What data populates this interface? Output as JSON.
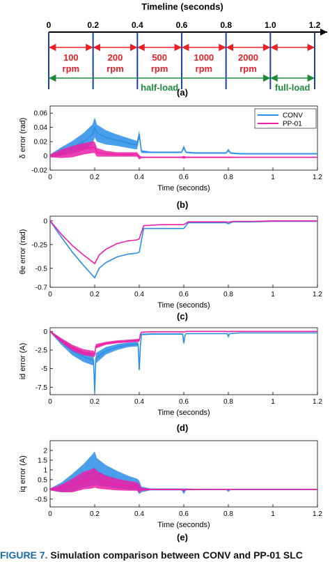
{
  "timeline": {
    "title": "Timeline (seconds)",
    "ticks": [
      "0",
      "0.2",
      "0.4",
      "0.6",
      "0.8",
      "1.0",
      "1.2"
    ],
    "tick_values": [
      0,
      0.2,
      0.4,
      0.6,
      0.8,
      1.0,
      1.2
    ],
    "speeds": [
      {
        "value": "100",
        "unit": "rpm",
        "start": 0,
        "end": 0.2
      },
      {
        "value": "200",
        "unit": "rpm",
        "start": 0.2,
        "end": 0.4
      },
      {
        "value": "500",
        "unit": "rpm",
        "start": 0.4,
        "end": 0.6
      },
      {
        "value": "1000",
        "unit": "rpm",
        "start": 0.6,
        "end": 0.8
      },
      {
        "value": "2000",
        "unit": "rpm",
        "start": 0.8,
        "end": 1.0
      }
    ],
    "loads": [
      {
        "label": "half-load",
        "start": 0,
        "end": 1.0
      },
      {
        "label": "full-load",
        "start": 1.0,
        "end": 1.2
      }
    ],
    "panel_label": "(a)",
    "colors": {
      "speed": "#e8202a",
      "load": "#1f8a3a",
      "marker": "#1a3fb0",
      "axis": "#000000"
    }
  },
  "colors": {
    "CONV": "#2b8ee6",
    "PP-01": "#ec1fa6"
  },
  "legend": [
    "CONV",
    "PP-01"
  ],
  "caption": {
    "lead": "FIGURE 7.",
    "rest": "Simulation comparison between CONV and PP-01 SLC"
  },
  "chart_data": [
    {
      "type": "line",
      "panel_label": "(b)",
      "xlabel": "Time (seconds)",
      "ylabel": "δ error (rad)",
      "xlim": [
        0,
        1.2
      ],
      "ylim": [
        -0.02,
        0.07
      ],
      "xticks": [
        0,
        0.2,
        0.4,
        0.6,
        0.8,
        1,
        1.2
      ],
      "xtick_labels": [
        "0",
        "0.2",
        "0.4",
        "0.6",
        "0.8",
        "1",
        "1.2"
      ],
      "yticks": [
        -0.02,
        0,
        0.02,
        0.04,
        0.06
      ],
      "ytick_labels": [
        "-0.02",
        "0",
        "0.02",
        "0.04",
        "0.06"
      ],
      "grid": false,
      "legend": "top-right",
      "series": [
        {
          "name": "CONV",
          "x": [
            0,
            0.05,
            0.1,
            0.15,
            0.19,
            0.2,
            0.21,
            0.25,
            0.3,
            0.35,
            0.39,
            0.4,
            0.41,
            0.45,
            0.5,
            0.55,
            0.59,
            0.6,
            0.61,
            0.65,
            0.7,
            0.75,
            0.79,
            0.8,
            0.81,
            0.85,
            0.9,
            0.95,
            1.0,
            1.05,
            1.1,
            1.15,
            1.2
          ],
          "y": [
            0,
            0.006,
            0.012,
            0.02,
            0.03,
            0.04,
            0.032,
            0.026,
            0.022,
            0.018,
            0.015,
            0.03,
            0.006,
            0.005,
            0.005,
            0.005,
            0.005,
            0.012,
            0.005,
            0.004,
            0.004,
            0.004,
            0.004,
            0.008,
            0.004,
            0.003,
            0.003,
            0.003,
            0.003,
            0.003,
            0.003,
            0.003,
            0.003
          ],
          "band": [
            0.002,
            0.006,
            0.009,
            0.012,
            0.014,
            0.014,
            0.012,
            0.01,
            0.008,
            0.007,
            0.006,
            0.006,
            0.002,
            0.001,
            0.001,
            0.001,
            0.001,
            0.003,
            0.001,
            0.001,
            0.001,
            0.001,
            0.001,
            0.002,
            0.001,
            0.001,
            0.001,
            0.001,
            0.001,
            0.001,
            0.001,
            0.001,
            0.001
          ]
        },
        {
          "name": "PP-01",
          "x": [
            0,
            0.05,
            0.1,
            0.15,
            0.19,
            0.2,
            0.21,
            0.25,
            0.3,
            0.35,
            0.39,
            0.4,
            0.41,
            0.45,
            0.5,
            0.55,
            0.59,
            0.6,
            0.61,
            0.65,
            0.7,
            0.75,
            0.79,
            0.8,
            0.81,
            0.85,
            0.9,
            0.95,
            1.0,
            1.05,
            1.1,
            1.15,
            1.2
          ],
          "y": [
            0,
            0.003,
            0.006,
            0.01,
            0.012,
            0.012,
            0.005,
            0.003,
            0.002,
            0.002,
            0.002,
            -0.002,
            -0.002,
            -0.002,
            -0.002,
            -0.002,
            -0.002,
            -0.002,
            -0.002,
            -0.002,
            -0.002,
            -0.002,
            -0.002,
            -0.002,
            -0.002,
            -0.002,
            -0.002,
            -0.002,
            -0.002,
            -0.002,
            -0.002,
            -0.002,
            -0.002
          ],
          "band": [
            0.002,
            0.006,
            0.008,
            0.008,
            0.008,
            0.008,
            0.006,
            0.004,
            0.003,
            0.003,
            0.003,
            0.003,
            0.001,
            0.001,
            0.001,
            0.001,
            0.001,
            0.002,
            0.001,
            0.001,
            0.001,
            0.001,
            0.001,
            0.001,
            0.001,
            0.0005,
            0.0005,
            0.0005,
            0.0005,
            0.0005,
            0.0005,
            0.0005,
            0.0005
          ]
        }
      ]
    },
    {
      "type": "line",
      "panel_label": "(c)",
      "xlabel": "Time (seconds)",
      "ylabel": "θe error (rad)",
      "xlim": [
        0,
        1.2
      ],
      "ylim": [
        -0.7,
        0.05
      ],
      "xticks": [
        0,
        0.2,
        0.4,
        0.6,
        0.8,
        1,
        1.2
      ],
      "xtick_labels": [
        "0",
        "0.2",
        "0.4",
        "0.6",
        "0.8",
        "1",
        "1.2"
      ],
      "yticks": [
        -0.7,
        -0.5,
        -0.25,
        0
      ],
      "ytick_labels": [
        "-0.7",
        "-0.5",
        "-0.25",
        "0"
      ],
      "grid": false,
      "series": [
        {
          "name": "CONV",
          "x": [
            0,
            0.05,
            0.1,
            0.15,
            0.2,
            0.22,
            0.25,
            0.3,
            0.35,
            0.39,
            0.4,
            0.42,
            0.5,
            0.59,
            0.6,
            0.62,
            0.7,
            0.79,
            0.8,
            0.82,
            0.9,
            1.0,
            1.1,
            1.2
          ],
          "y": [
            0,
            -0.17,
            -0.33,
            -0.47,
            -0.6,
            -0.5,
            -0.44,
            -0.38,
            -0.35,
            -0.34,
            -0.33,
            -0.08,
            -0.08,
            -0.08,
            -0.08,
            -0.02,
            -0.02,
            -0.02,
            -0.03,
            -0.01,
            -0.01,
            -0.005,
            -0.005,
            -0.005
          ]
        },
        {
          "name": "PP-01",
          "x": [
            0,
            0.05,
            0.1,
            0.15,
            0.2,
            0.22,
            0.25,
            0.3,
            0.35,
            0.39,
            0.4,
            0.42,
            0.5,
            0.59,
            0.6,
            0.62,
            0.7,
            0.79,
            0.8,
            0.82,
            0.9,
            1.0,
            1.1,
            1.2
          ],
          "y": [
            0,
            -0.14,
            -0.26,
            -0.36,
            -0.45,
            -0.36,
            -0.3,
            -0.24,
            -0.21,
            -0.2,
            -0.19,
            -0.05,
            -0.04,
            -0.04,
            -0.04,
            -0.01,
            -0.01,
            -0.01,
            -0.015,
            -0.005,
            -0.005,
            0,
            0,
            0
          ]
        }
      ]
    },
    {
      "type": "line",
      "panel_label": "(d)",
      "xlabel": "Time (seconds)",
      "ylabel": "id error (A)",
      "xlim": [
        0,
        1.2
      ],
      "ylim": [
        -8.5,
        0.5
      ],
      "xticks": [
        0,
        0.2,
        0.4,
        0.6,
        0.8,
        1,
        1.2
      ],
      "xtick_labels": [
        "0",
        "0.2",
        "0.4",
        "0.6",
        "0.8",
        "1",
        "1.2"
      ],
      "yticks": [
        -7.5,
        -5,
        -2.5,
        0
      ],
      "ytick_labels": [
        "-7.5",
        "-5",
        "-2.5",
        "0"
      ],
      "grid": false,
      "series": [
        {
          "name": "CONV",
          "x": [
            0,
            0.05,
            0.1,
            0.15,
            0.195,
            0.2,
            0.205,
            0.25,
            0.3,
            0.35,
            0.395,
            0.4,
            0.405,
            0.41,
            0.45,
            0.5,
            0.55,
            0.595,
            0.6,
            0.605,
            0.61,
            0.65,
            0.7,
            0.75,
            0.795,
            0.8,
            0.805,
            0.85,
            0.9,
            0.95,
            1.0,
            1.05,
            1.1,
            1.15,
            1.2
          ],
          "y": [
            0,
            -1.4,
            -2.6,
            -3.4,
            -3.9,
            -8.2,
            -3.6,
            -2.6,
            -2.1,
            -1.8,
            -1.7,
            -5.2,
            -2.0,
            -0.4,
            -0.35,
            -0.35,
            -0.35,
            -0.35,
            -1.6,
            -0.6,
            -0.3,
            -0.3,
            -0.3,
            -0.3,
            -0.3,
            -0.7,
            -0.3,
            -0.2,
            -0.2,
            -0.2,
            -0.2,
            -0.2,
            -0.2,
            -0.2,
            -0.2
          ],
          "band": [
            0.1,
            0.4,
            0.6,
            0.7,
            0.7,
            0.5,
            0.7,
            0.5,
            0.4,
            0.3,
            0.3,
            0.3,
            0.2,
            0.1,
            0.1,
            0.1,
            0.1,
            0.1,
            0.2,
            0.1,
            0.05,
            0.05,
            0.05,
            0.05,
            0.05,
            0.1,
            0.05,
            0.05,
            0.05,
            0.05,
            0.05,
            0.05,
            0.05,
            0.05,
            0.05
          ]
        },
        {
          "name": "PP-01",
          "x": [
            0,
            0.05,
            0.1,
            0.15,
            0.195,
            0.2,
            0.205,
            0.25,
            0.3,
            0.35,
            0.395,
            0.4,
            0.405,
            0.41,
            0.45,
            0.5,
            0.55,
            0.595,
            0.6,
            0.605,
            0.61,
            0.65,
            0.7,
            0.75,
            0.795,
            0.8,
            0.805,
            0.85,
            0.9,
            0.95,
            1.0,
            1.05,
            1.1,
            1.15,
            1.2
          ],
          "y": [
            0,
            -1.2,
            -2.2,
            -2.8,
            -3.0,
            -3.1,
            -2.0,
            -1.6,
            -1.4,
            -1.3,
            -1.2,
            -1.2,
            -0.4,
            -0.1,
            -0.05,
            -0.05,
            -0.05,
            -0.05,
            -0.1,
            -0.05,
            0,
            0,
            0,
            0,
            0,
            -0.05,
            0,
            0,
            0,
            0,
            0,
            0,
            0,
            0,
            0
          ],
          "band": [
            0.1,
            0.3,
            0.4,
            0.4,
            0.4,
            0.3,
            0.3,
            0.2,
            0.2,
            0.2,
            0.2,
            0.2,
            0.1,
            0.05,
            0.05,
            0.05,
            0.05,
            0.05,
            0.05,
            0.05,
            0.05,
            0.05,
            0.05,
            0.05,
            0.05,
            0.05,
            0.05,
            0.05,
            0.05,
            0.05,
            0.05,
            0.05,
            0.05,
            0.05,
            0.05
          ]
        }
      ]
    },
    {
      "type": "line",
      "panel_label": "(e)",
      "xlabel": "Time (seconds)",
      "ylabel": "iq error (A)",
      "xlim": [
        0,
        1.2
      ],
      "ylim": [
        -0.9,
        2.5
      ],
      "xticks": [
        0,
        0.2,
        0.4,
        0.6,
        0.8,
        1,
        1.2
      ],
      "xtick_labels": [
        "0",
        "0.2",
        "0.4",
        "0.6",
        "0.8",
        "1",
        "1.2"
      ],
      "yticks": [
        -0.5,
        0,
        0.5,
        1,
        1.5,
        2
      ],
      "ytick_labels": [
        "-0.5",
        "0",
        "0.5",
        "1",
        "1.5",
        "2"
      ],
      "grid": false,
      "series": [
        {
          "name": "CONV",
          "x": [
            0,
            0.05,
            0.1,
            0.15,
            0.19,
            0.2,
            0.21,
            0.25,
            0.3,
            0.35,
            0.39,
            0.4,
            0.41,
            0.45,
            0.5,
            0.55,
            0.59,
            0.6,
            0.61,
            0.65,
            0.7,
            0.75,
            0.79,
            0.8,
            0.81,
            0.85,
            0.9,
            0.95,
            1.0,
            1.05,
            1.1,
            1.15,
            1.2
          ],
          "y": [
            0,
            0.1,
            0.35,
            0.7,
            1.0,
            1.1,
            0.9,
            0.7,
            0.5,
            0.35,
            0.25,
            0.1,
            0,
            0,
            0,
            0,
            0,
            -0.1,
            0,
            0,
            0,
            0,
            0,
            -0.05,
            0,
            0,
            0,
            0,
            0,
            0,
            0,
            0,
            0
          ],
          "band": [
            0.05,
            0.25,
            0.45,
            0.6,
            0.8,
            0.85,
            0.7,
            0.55,
            0.45,
            0.35,
            0.3,
            0.35,
            0.15,
            0.05,
            0.05,
            0.05,
            0.05,
            0.15,
            0.05,
            0.03,
            0.03,
            0.03,
            0.03,
            0.08,
            0.03,
            0.03,
            0.03,
            0.03,
            0.03,
            0.03,
            0.03,
            0.03,
            0.03
          ]
        },
        {
          "name": "PP-01",
          "x": [
            0,
            0.05,
            0.1,
            0.15,
            0.19,
            0.2,
            0.21,
            0.25,
            0.3,
            0.35,
            0.39,
            0.4,
            0.41,
            0.45,
            0.5,
            0.55,
            0.59,
            0.6,
            0.61,
            0.65,
            0.7,
            0.75,
            0.79,
            0.8,
            0.81,
            0.85,
            0.9,
            0.95,
            1.0,
            1.05,
            1.1,
            1.15,
            1.2
          ],
          "y": [
            0,
            0.05,
            0.2,
            0.45,
            0.55,
            0.6,
            0.5,
            0.35,
            0.25,
            0.18,
            0.15,
            0.05,
            0,
            0,
            0,
            0,
            0,
            -0.05,
            0,
            0,
            0,
            0,
            0,
            0,
            0,
            0,
            0,
            0,
            0,
            0,
            0,
            0,
            0
          ],
          "band": [
            0.05,
            0.2,
            0.35,
            0.45,
            0.5,
            0.5,
            0.45,
            0.35,
            0.3,
            0.25,
            0.22,
            0.22,
            0.08,
            0.03,
            0.03,
            0.03,
            0.03,
            0.06,
            0.03,
            0.02,
            0.02,
            0.02,
            0.02,
            0.03,
            0.02,
            0.02,
            0.02,
            0.02,
            0.02,
            0.02,
            0.02,
            0.02,
            0.02
          ]
        }
      ]
    }
  ]
}
